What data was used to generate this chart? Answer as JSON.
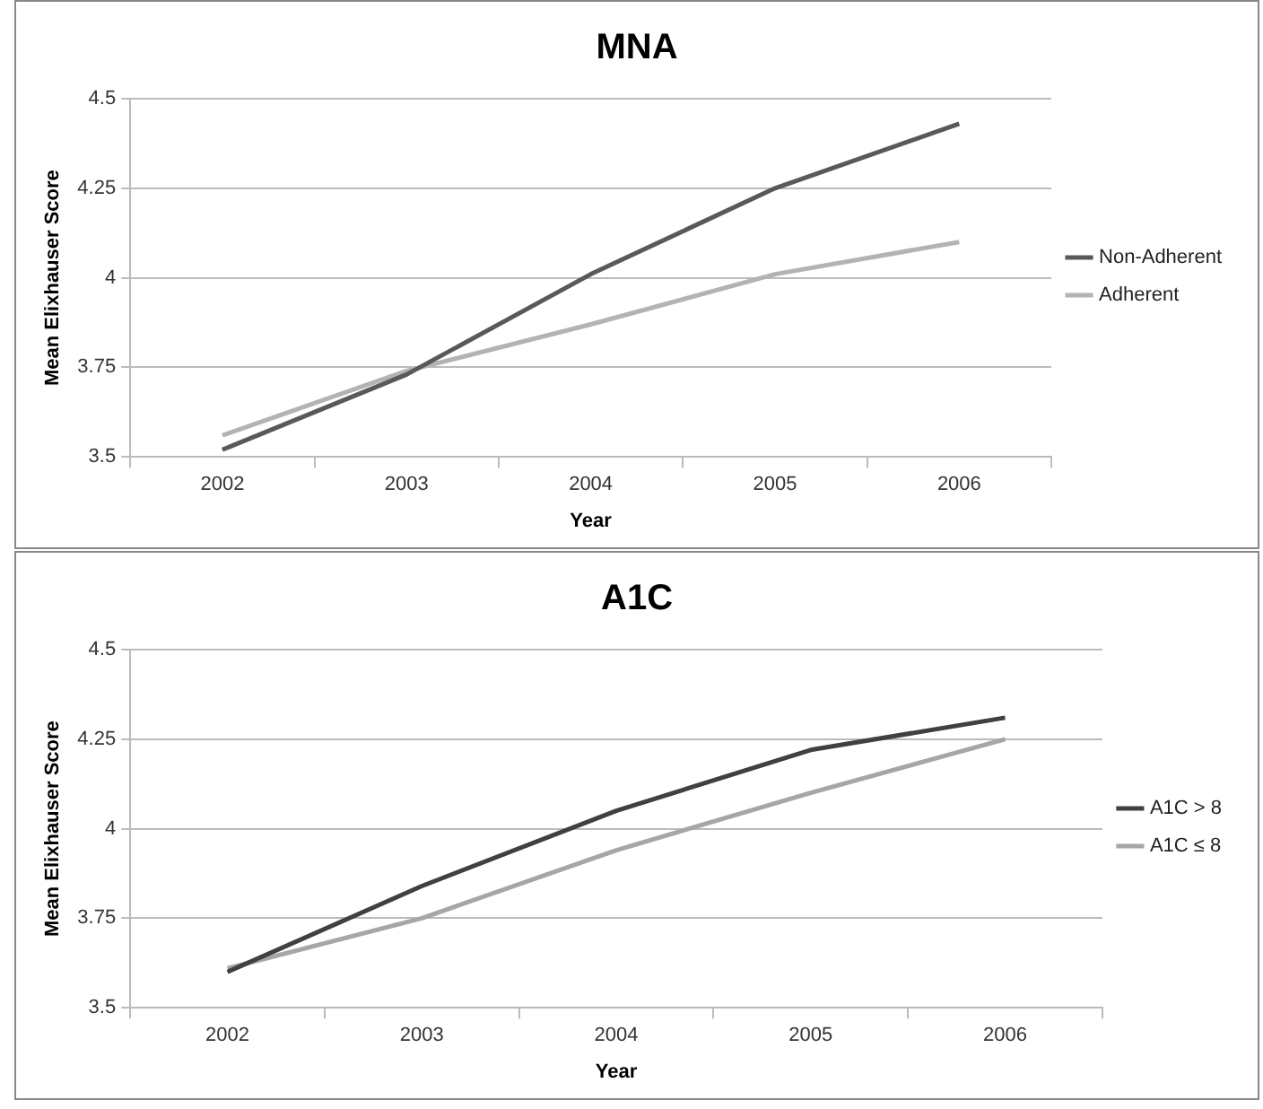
{
  "chart_data": [
    {
      "type": "line",
      "title": "MNA",
      "xlabel": "Year",
      "ylabel": "Mean Elixhauser Score",
      "categories": [
        "2002",
        "2003",
        "2004",
        "2005",
        "2006"
      ],
      "series": [
        {
          "name": "Non-Adherent",
          "color": "#595959",
          "values": [
            3.52,
            3.73,
            4.01,
            4.25,
            4.43
          ]
        },
        {
          "name": "Adherent",
          "color": "#b3b3b3",
          "values": [
            3.56,
            3.74,
            3.87,
            4.01,
            4.1
          ]
        }
      ],
      "ylim": [
        3.5,
        4.5
      ],
      "yticks": [
        3.5,
        3.75,
        4,
        4.25,
        4.5
      ],
      "grid": "y",
      "legend": "right",
      "marker": "none"
    },
    {
      "type": "line",
      "title": "A1C",
      "xlabel": "Year",
      "ylabel": "Mean Elixhauser Score",
      "categories": [
        "2002",
        "2003",
        "2004",
        "2005",
        "2006"
      ],
      "series": [
        {
          "name": "A1C > 8",
          "color": "#404040",
          "values": [
            3.6,
            3.84,
            4.05,
            4.22,
            4.31
          ]
        },
        {
          "name": "A1C ≤ 8",
          "color": "#a6a6a6",
          "values": [
            3.61,
            3.75,
            3.94,
            4.1,
            4.25
          ]
        }
      ],
      "ylim": [
        3.5,
        4.5
      ],
      "yticks": [
        3.5,
        3.75,
        4,
        4.25,
        4.5
      ],
      "grid": "y",
      "legend": "right",
      "marker": "none"
    }
  ]
}
